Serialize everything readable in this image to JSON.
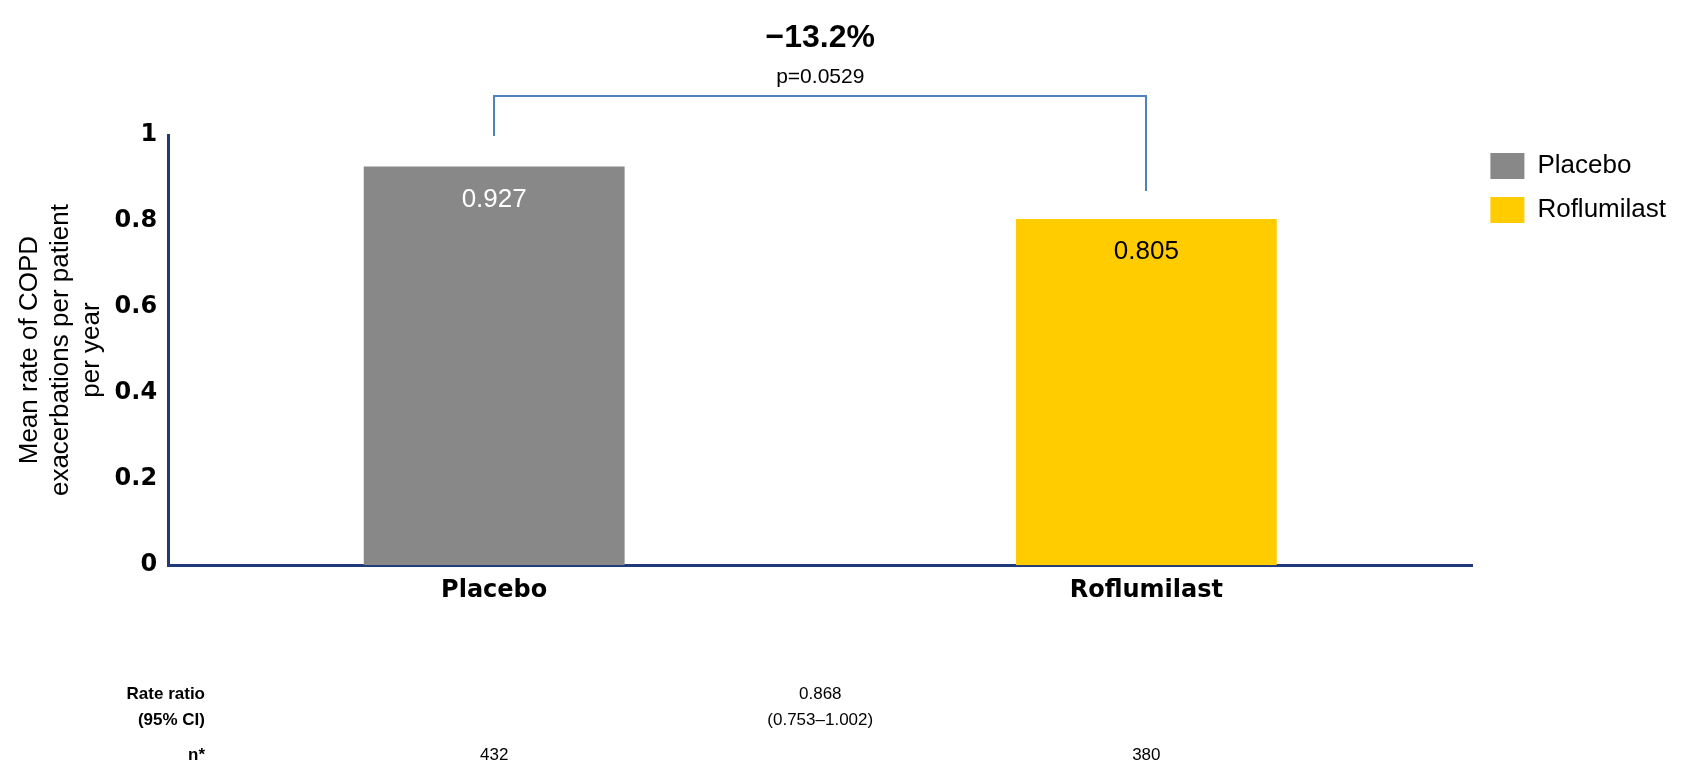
{
  "chart_data": {
    "type": "bar",
    "ylabel": "Mean rate of COPD exacerbations per patient per year",
    "categories": [
      "Placebo",
      "Roflumilast"
    ],
    "series": [
      {
        "name": "Placebo",
        "color": "#888888",
        "values": [
          0.927,
          null
        ]
      },
      {
        "name": "Roflumilast",
        "color": "#ffcc00",
        "values": [
          null,
          0.805
        ]
      }
    ],
    "ylim": [
      0,
      1
    ],
    "yticks": [
      0,
      0.2,
      0.4,
      0.6,
      0.8,
      1
    ],
    "data_labels": true,
    "legend": "right",
    "grid": false,
    "annotations": [
      "−13.2%",
      "p=0.0529",
      "Rate ratio\n(95% CI)",
      "0.868\n(0.753–1.002)",
      "n*",
      "432",
      "380"
    ]
  }
}
